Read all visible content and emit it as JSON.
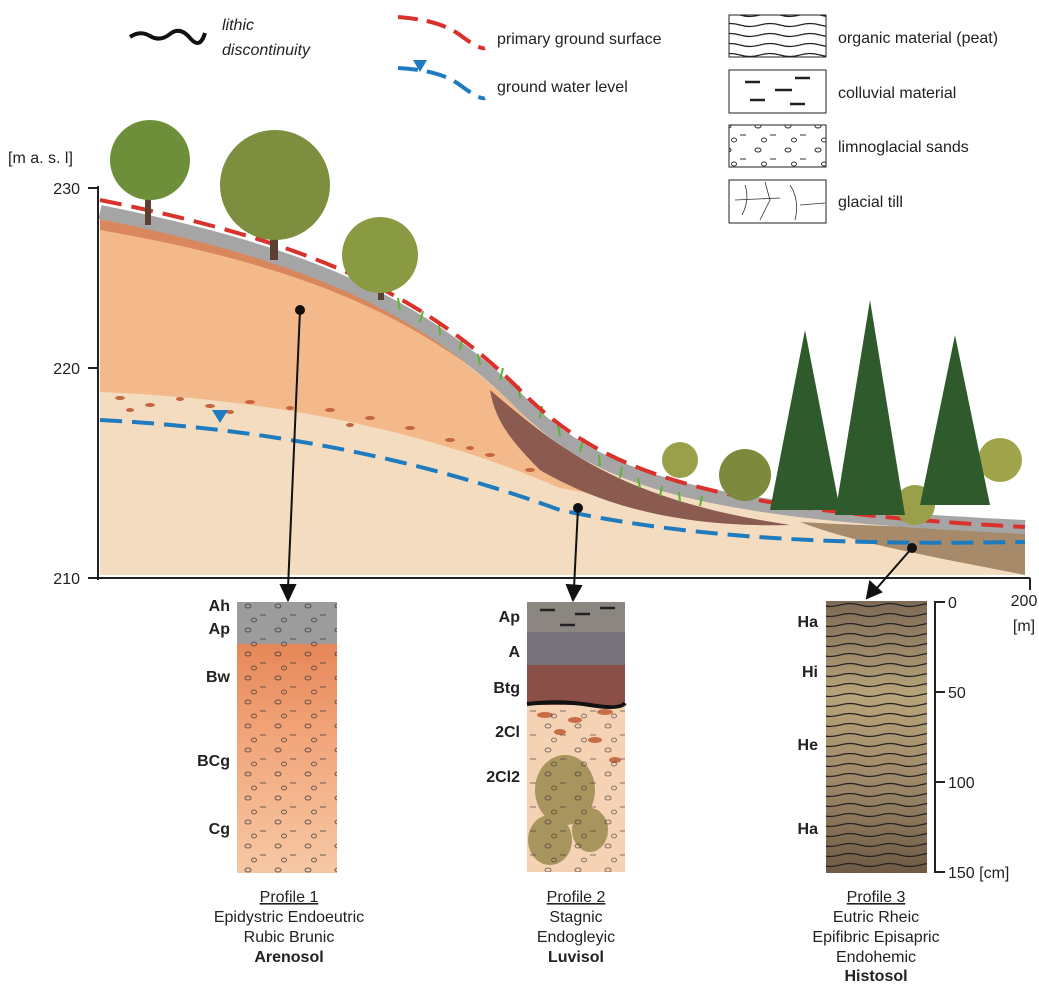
{
  "legend": {
    "lithic": [
      "lithic",
      "discontinuity"
    ],
    "primary_ground_surface": "primary ground surface",
    "ground_water_level": "ground water level",
    "materials": [
      "organic material (peat)",
      "colluvial material",
      "limnoglacial sands",
      "glacial till"
    ]
  },
  "axis": {
    "y_unit": "[m a. s. l]",
    "y_ticks": [
      "230",
      "220",
      "210"
    ],
    "x_end": "200",
    "x_unit": "[m]"
  },
  "profiles": [
    {
      "horizons": [
        "Ah",
        "Ap",
        "Bw",
        "BCg",
        "Cg"
      ],
      "title": "Profile 1",
      "lines": [
        "Epidystric Endoeutric",
        "Rubic Brunic"
      ],
      "soil": "Arenosol"
    },
    {
      "horizons": [
        "Ap",
        "A",
        "Btg",
        "2Cl",
        "2Cl2"
      ],
      "title": "Profile 2",
      "lines": [
        "Stagnic",
        "Endogleyic"
      ],
      "soil": "Luvisol"
    },
    {
      "horizons": [
        "Ha",
        "Hi",
        "He",
        "Ha"
      ],
      "title": "Profile 3",
      "lines": [
        "Eutric Rheic",
        "Epifibric Episapric",
        "Endohemic"
      ],
      "soil": "Histosol"
    }
  ],
  "depth_scale": [
    "0",
    "50",
    "100",
    "150 [cm]"
  ]
}
